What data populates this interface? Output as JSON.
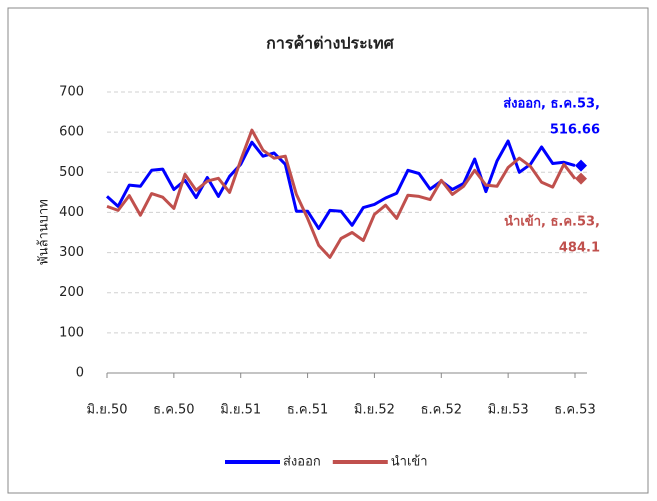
{
  "chart_data": {
    "type": "line",
    "title": "การค้าต่างประเทศ",
    "y_label": "พันล้านบาท",
    "categories": [
      "มิ.ย.50",
      null,
      null,
      null,
      null,
      null,
      "ธ.ค.50",
      null,
      null,
      null,
      null,
      null,
      "มิ.ย.51",
      null,
      null,
      null,
      null,
      null,
      "ธ.ค.51",
      null,
      null,
      null,
      null,
      null,
      "มิ.ย.52",
      null,
      null,
      null,
      null,
      null,
      "ธ.ค.52",
      null,
      null,
      null,
      null,
      null,
      "มิ.ย.53",
      null,
      null,
      null,
      null,
      null,
      "ธ.ค.53"
    ],
    "series": [
      {
        "name": "ส่งออก",
        "color": "#0000ff",
        "values": [
          440,
          415,
          468,
          465,
          505,
          508,
          457,
          480,
          437,
          487,
          440,
          490,
          520,
          575,
          540,
          548,
          520,
          403,
          403,
          360,
          405,
          403,
          368,
          412,
          420,
          436,
          448,
          505,
          497,
          458,
          478,
          457,
          472,
          533,
          452,
          528,
          578,
          500,
          520,
          563,
          522,
          525,
          516.66
        ]
      },
      {
        "name": "นำเข้า",
        "color": "#c0504d",
        "values": [
          415,
          405,
          442,
          393,
          447,
          438,
          410,
          495,
          455,
          478,
          485,
          450,
          530,
          605,
          555,
          535,
          540,
          445,
          385,
          318,
          288,
          335,
          350,
          330,
          395,
          418,
          385,
          443,
          440,
          432,
          480,
          445,
          465,
          505,
          468,
          465,
          512,
          535,
          515,
          475,
          463,
          520,
          484.1
        ]
      }
    ],
    "annotations": [
      "ส่งออก, ธ.ค.53,",
      "นำเข้า, ธ.ค.53,"
    ],
    "ylim": [
      0,
      700
    ],
    "yticks": [
      0,
      100,
      200,
      300,
      400,
      500,
      600,
      700
    ],
    "grid": true,
    "legend": "bottom"
  }
}
